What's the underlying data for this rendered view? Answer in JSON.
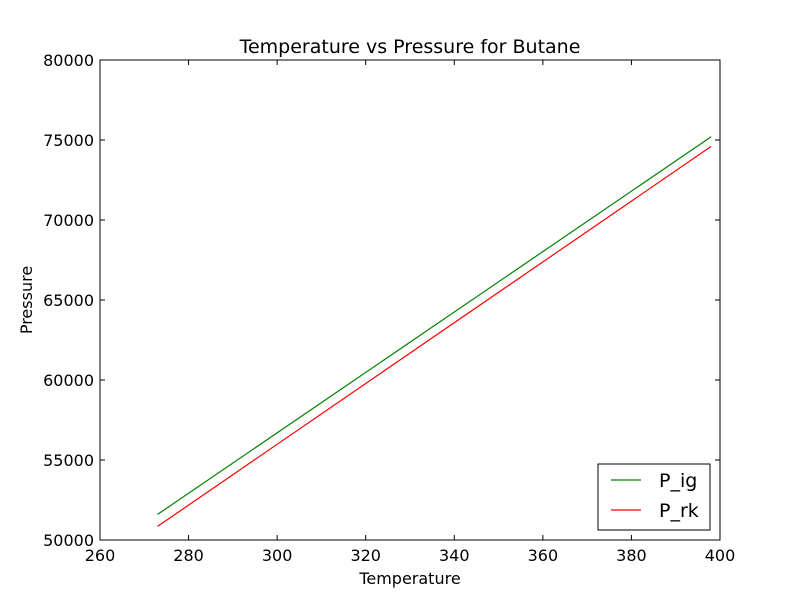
{
  "chart_data": {
    "type": "line",
    "title": "Temperature vs Pressure for Butane",
    "xlabel": "Temperature",
    "ylabel": "Pressure",
    "xlim": [
      260,
      400
    ],
    "ylim": [
      50000,
      80000
    ],
    "xticks": [
      260,
      280,
      300,
      320,
      340,
      360,
      380,
      400
    ],
    "yticks": [
      50000,
      55000,
      60000,
      65000,
      70000,
      75000,
      80000
    ],
    "grid": false,
    "legend_position": "lower-right",
    "series": [
      {
        "name": "P_ig",
        "color": "#008000",
        "x": [
          273,
          398
        ],
        "y": [
          51600,
          75200
        ]
      },
      {
        "name": "P_rk",
        "color": "#ff0000",
        "x": [
          273,
          398
        ],
        "y": [
          50850,
          74600
        ]
      }
    ]
  }
}
